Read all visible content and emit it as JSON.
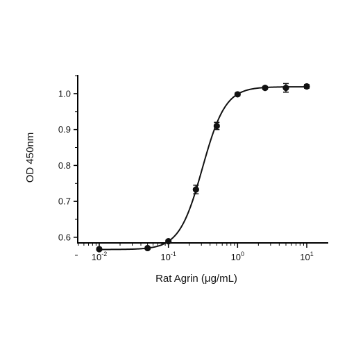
{
  "chart_data": {
    "type": "scatter",
    "title": "",
    "xlabel": "Rat Agrin (μg/mL)",
    "ylabel": "OD 450nm",
    "x_scale": "log",
    "xlim": [
      0.01,
      10
    ],
    "ylim": [
      0.55,
      1.05
    ],
    "grid": false,
    "legend": "none",
    "x_ticks": [
      {
        "base": "10",
        "exp": "-2",
        "value": 0.01
      },
      {
        "base": "10",
        "exp": "-1",
        "value": 0.1
      },
      {
        "base": "10",
        "exp": "0",
        "value": 1
      },
      {
        "base": "10",
        "exp": "1",
        "value": 10
      }
    ],
    "y_ticks": [
      "0.6",
      "0.7",
      "0.8",
      "0.9",
      "1.0"
    ],
    "series": [
      {
        "marker": "filled-circle",
        "color": "#111111",
        "fit": "sigmoid",
        "x": [
          0.01,
          0.05,
          0.1,
          0.25,
          0.5,
          1,
          2.5,
          5,
          10
        ],
        "y": [
          0.567,
          0.57,
          0.589,
          0.733,
          0.91,
          0.998,
          1.016,
          1.016,
          1.02
        ],
        "error": [
          0.003,
          0.003,
          0.004,
          0.012,
          0.01,
          0.004,
          0.004,
          0.012,
          0.005
        ]
      }
    ]
  }
}
